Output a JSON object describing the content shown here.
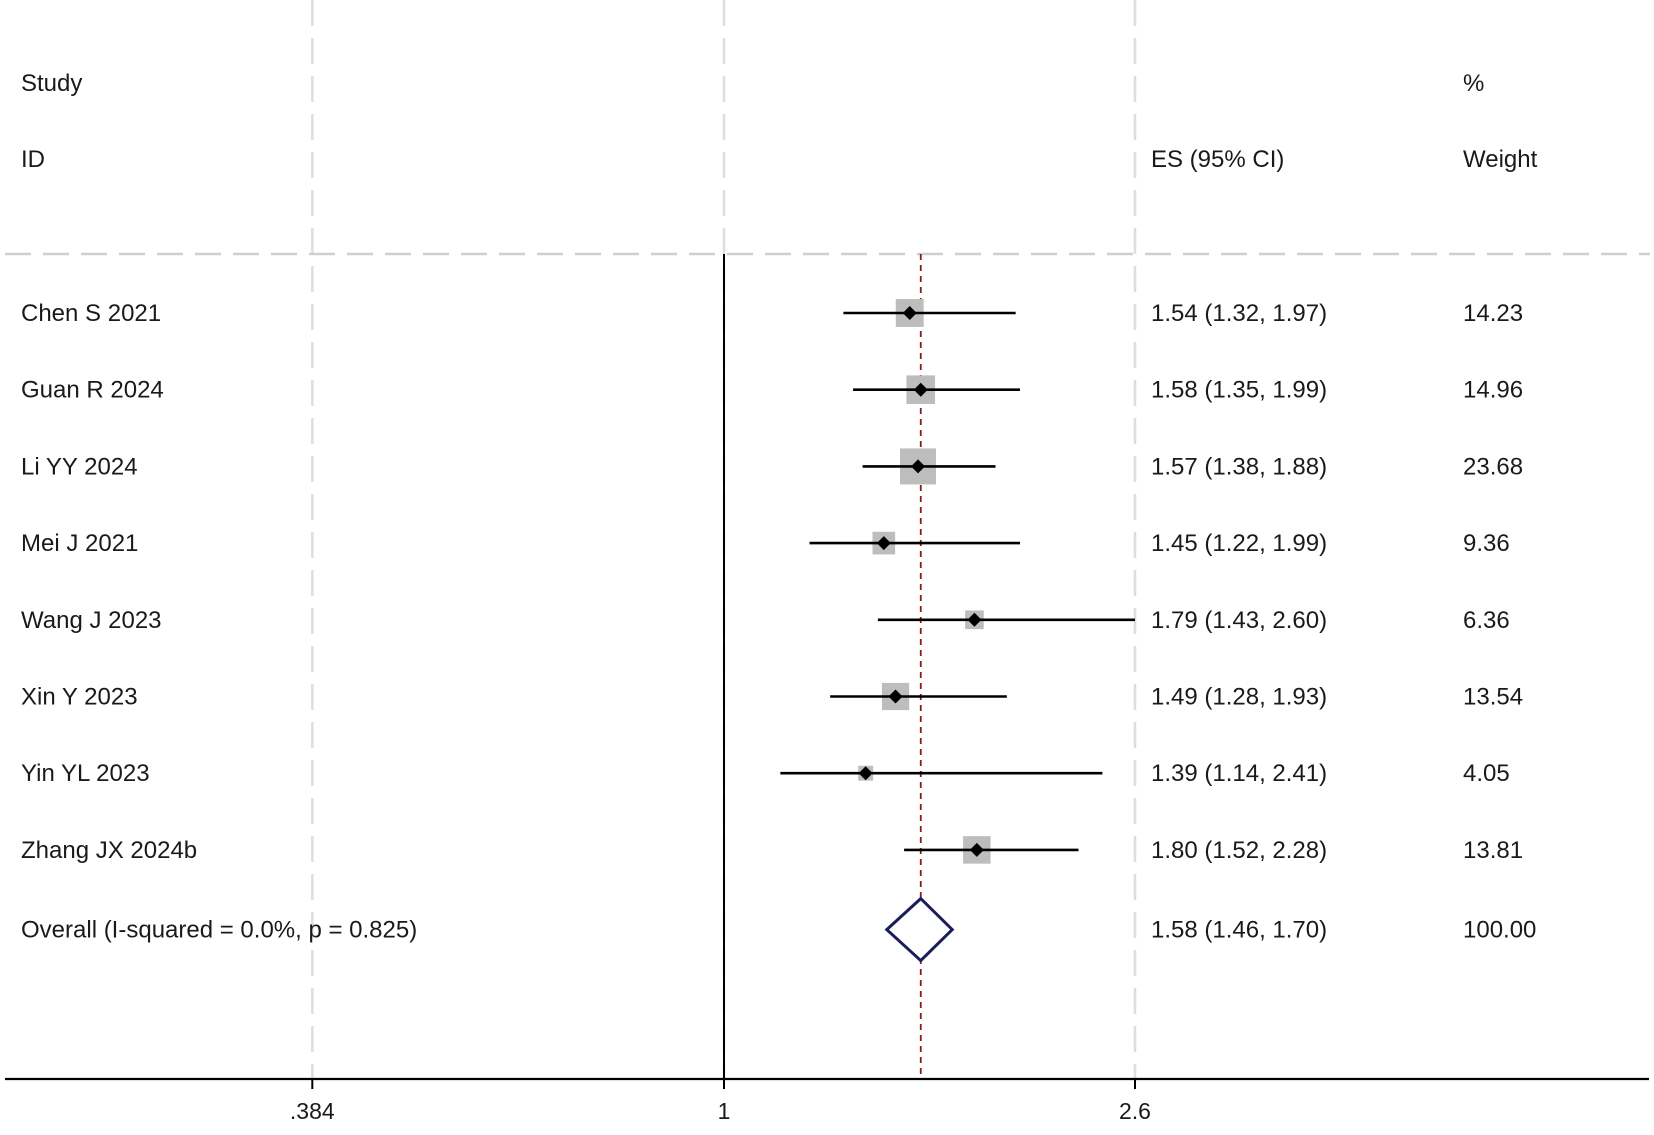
{
  "chart_data": {
    "type": "forest",
    "headers": {
      "study_line1": "Study",
      "study_line2": "ID",
      "es": "ES (95% CI)",
      "weight_line1": "%",
      "weight_line2": "Weight"
    },
    "x_scale": "log",
    "xlim": [
      0.384,
      5.0
    ],
    "xticks": [
      {
        "value": 0.384,
        "label": ".384"
      },
      {
        "value": 1,
        "label": "1"
      },
      {
        "value": 2.6,
        "label": "2.6"
      }
    ],
    "null_line": 1,
    "overall_line": 1.58,
    "studies": [
      {
        "id": "Chen S 2021",
        "es": 1.54,
        "lo": 1.32,
        "hi": 1.97,
        "es_text": "1.54 (1.32, 1.97)",
        "weight": 14.23,
        "weight_text": "14.23"
      },
      {
        "id": "Guan R 2024",
        "es": 1.58,
        "lo": 1.35,
        "hi": 1.99,
        "es_text": "1.58 (1.35, 1.99)",
        "weight": 14.96,
        "weight_text": "14.96"
      },
      {
        "id": "Li YY 2024",
        "es": 1.57,
        "lo": 1.38,
        "hi": 1.88,
        "es_text": "1.57 (1.38, 1.88)",
        "weight": 23.68,
        "weight_text": "23.68"
      },
      {
        "id": "Mei J 2021",
        "es": 1.45,
        "lo": 1.22,
        "hi": 1.99,
        "es_text": "1.45 (1.22, 1.99)",
        "weight": 9.36,
        "weight_text": "9.36"
      },
      {
        "id": "Wang J 2023",
        "es": 1.79,
        "lo": 1.43,
        "hi": 2.6,
        "es_text": "1.79 (1.43, 2.60)",
        "weight": 6.36,
        "weight_text": "6.36"
      },
      {
        "id": "Xin Y 2023",
        "es": 1.49,
        "lo": 1.28,
        "hi": 1.93,
        "es_text": "1.49 (1.28, 1.93)",
        "weight": 13.54,
        "weight_text": "13.54"
      },
      {
        "id": "Yin YL 2023",
        "es": 1.39,
        "lo": 1.14,
        "hi": 2.41,
        "es_text": "1.39 (1.14, 2.41)",
        "weight": 4.05,
        "weight_text": "4.05"
      },
      {
        "id": "Zhang JX 2024b",
        "es": 1.8,
        "lo": 1.52,
        "hi": 2.28,
        "es_text": "1.80 (1.52, 2.28)",
        "weight": 13.81,
        "weight_text": "13.81"
      }
    ],
    "overall": {
      "label": "Overall  (I-squared = 0.0%, p = 0.825)",
      "es": 1.58,
      "lo": 1.46,
      "hi": 1.7,
      "es_text": "1.58 (1.46, 1.70)",
      "weight_text": "100.00"
    },
    "colors": {
      "box": "#bdbdbd",
      "point": "#000000",
      "ci": "#000000",
      "diamond": "#1a1f5c",
      "overall_line": "#8b1a1a",
      "grid": "#dedede",
      "axis": "#000000"
    }
  }
}
